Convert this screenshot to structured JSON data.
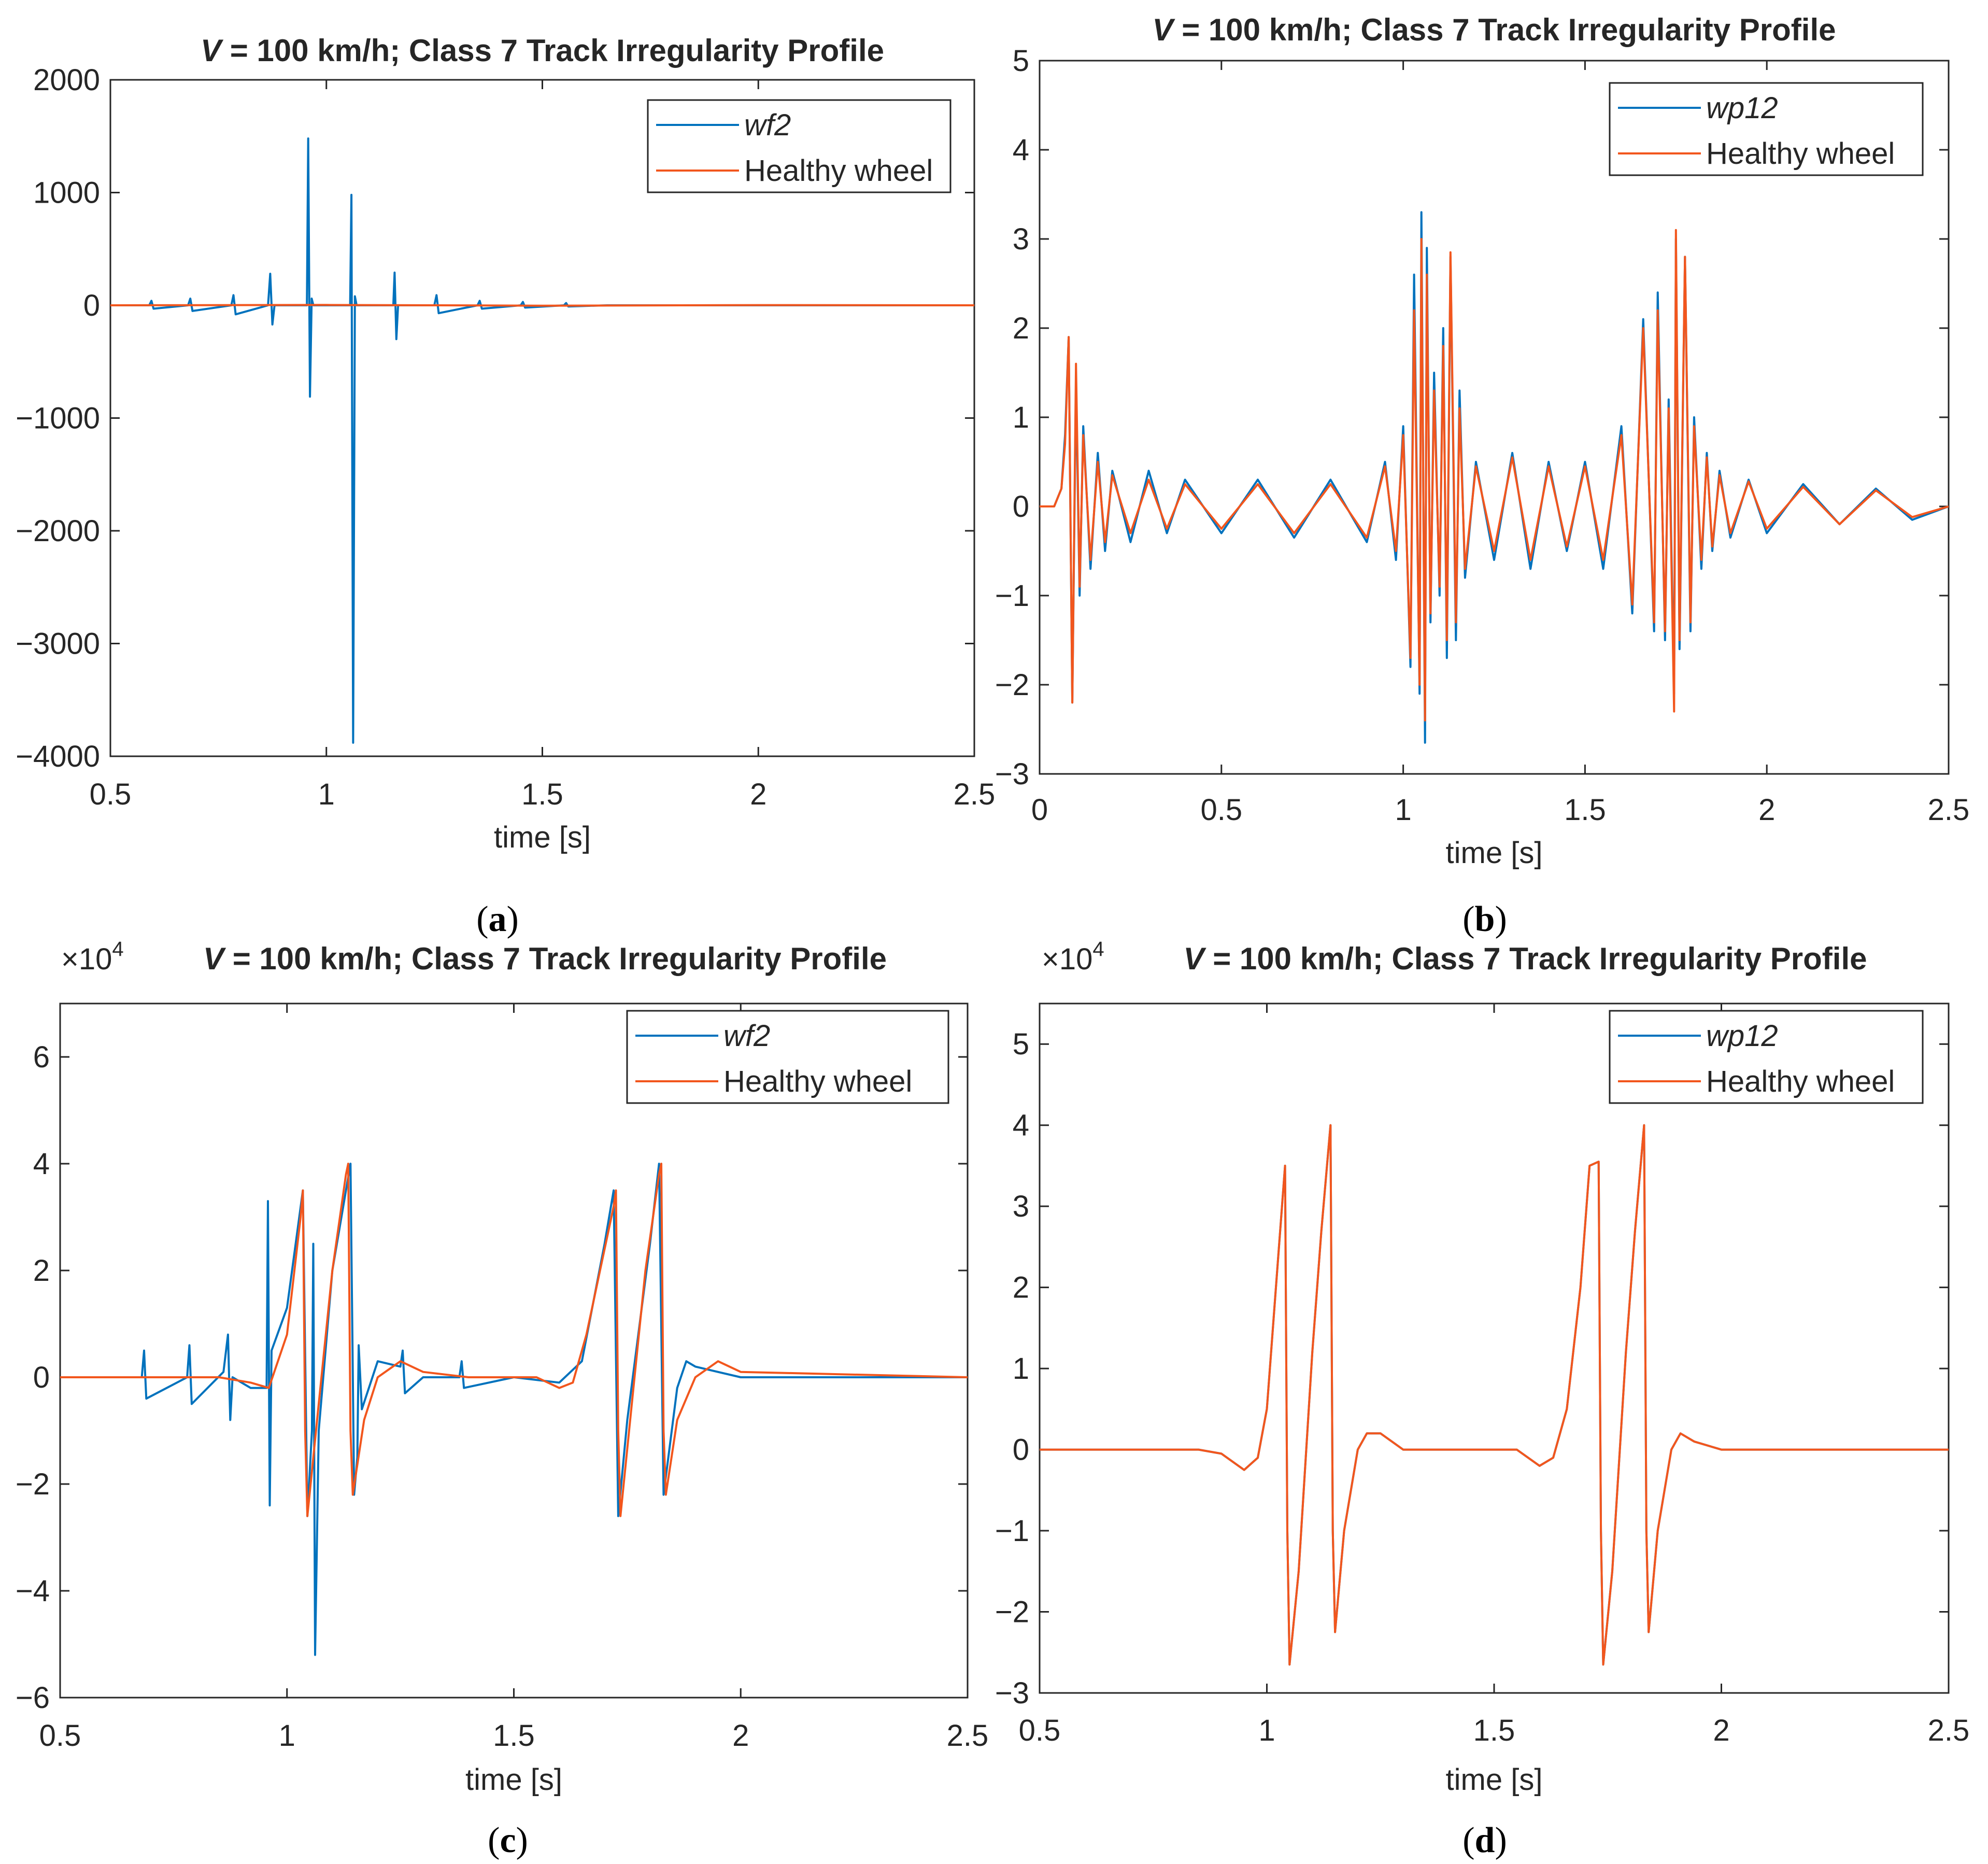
{
  "colors": {
    "faulty": "#0072BD",
    "healthy": "#F2561D",
    "axis": "#262626",
    "background": "#ffffff"
  },
  "chart_data": [
    {
      "id": "a",
      "type": "line",
      "title_speed": "V",
      "title_rest": " = 100 km/h; Class 7 Track Irregularity Profile",
      "xlabel": "time [s]",
      "ylabel": "",
      "caption": "(a)",
      "exponent": "",
      "xlim": [
        0.5,
        2.5
      ],
      "ylim": [
        -4000,
        2000
      ],
      "xticks": [
        0.5,
        1,
        1.5,
        2,
        2.5
      ],
      "xtick_labels": [
        "0.5",
        "1",
        "1.5",
        "2",
        "2.5"
      ],
      "yticks": [
        -4000,
        -3000,
        -2000,
        -1000,
        0,
        1000,
        2000
      ],
      "ytick_labels": [
        "−4000",
        "−3000",
        "−2000",
        "−1000",
        "0",
        "1000",
        "2000"
      ],
      "legend": [
        "wf2",
        "Healthy wheel"
      ],
      "legend_position": "top-right",
      "series": [
        {
          "name": "wf2",
          "x": [
            0.5,
            0.59,
            0.595,
            0.6,
            0.68,
            0.685,
            0.69,
            0.78,
            0.785,
            0.79,
            0.865,
            0.87,
            0.875,
            0.88,
            0.955,
            0.958,
            0.962,
            0.966,
            0.97,
            1.055,
            1.058,
            1.062,
            1.066,
            1.07,
            1.155,
            1.158,
            1.162,
            1.166,
            1.25,
            1.255,
            1.26,
            1.35,
            1.355,
            1.36,
            1.45,
            1.455,
            1.46,
            1.55,
            1.555,
            1.56,
            1.65,
            1.7,
            2.5
          ],
          "y": [
            0,
            0,
            40,
            -30,
            0,
            60,
            -50,
            0,
            90,
            -80,
            0,
            280,
            -170,
            0,
            0,
            1480,
            -810,
            60,
            0,
            0,
            980,
            -3880,
            80,
            0,
            0,
            290,
            -300,
            0,
            0,
            90,
            -70,
            0,
            40,
            -30,
            0,
            30,
            -20,
            0,
            20,
            -10,
            0,
            0,
            0
          ]
        },
        {
          "name": "Healthy wheel",
          "x": [
            0.5,
            1.0,
            1.5,
            2.0,
            2.5
          ],
          "y": [
            0,
            3,
            -3,
            2,
            0
          ]
        }
      ]
    },
    {
      "id": "b",
      "type": "line",
      "title_speed": "V",
      "title_rest": " = 100 km/h; Class 7 Track Irregularity Profile",
      "xlabel": "time [s]",
      "ylabel": "",
      "caption": "(b)",
      "exponent": "",
      "xlim": [
        0,
        2.5
      ],
      "ylim": [
        -3,
        5
      ],
      "xticks": [
        0,
        0.5,
        1,
        1.5,
        2,
        2.5
      ],
      "xtick_labels": [
        "0",
        "0.5",
        "1",
        "1.5",
        "2",
        "2.5"
      ],
      "yticks": [
        -3,
        -2,
        -1,
        0,
        1,
        2,
        3,
        4,
        5
      ],
      "ytick_labels": [
        "−3",
        "−2",
        "−1",
        "0",
        "1",
        "2",
        "3",
        "4",
        "5"
      ],
      "legend": [
        "wp12",
        "Healthy wheel"
      ],
      "legend_position": "top-right",
      "series": [
        {
          "name": "wp12",
          "x": [
            0,
            0.04,
            0.06,
            0.07,
            0.08,
            0.09,
            0.1,
            0.11,
            0.12,
            0.14,
            0.16,
            0.18,
            0.2,
            0.25,
            0.3,
            0.35,
            0.4,
            0.5,
            0.6,
            0.7,
            0.8,
            0.9,
            0.95,
            0.98,
            1.0,
            1.02,
            1.03,
            1.045,
            1.05,
            1.06,
            1.065,
            1.075,
            1.085,
            1.1,
            1.11,
            1.12,
            1.13,
            1.145,
            1.155,
            1.17,
            1.2,
            1.25,
            1.3,
            1.35,
            1.4,
            1.45,
            1.5,
            1.55,
            1.6,
            1.63,
            1.66,
            1.69,
            1.7,
            1.72,
            1.73,
            1.745,
            1.75,
            1.76,
            1.775,
            1.79,
            1.8,
            1.82,
            1.835,
            1.85,
            1.87,
            1.9,
            1.95,
            2.0,
            2.1,
            2.2,
            2.3,
            2.4,
            2.5
          ],
          "y": [
            0,
            0,
            0.2,
            0.8,
            1.9,
            -2.2,
            1.4,
            -1.0,
            0.9,
            -0.7,
            0.6,
            -0.5,
            0.4,
            -0.4,
            0.4,
            -0.3,
            0.3,
            -0.3,
            0.3,
            -0.35,
            0.3,
            -0.4,
            0.5,
            -0.6,
            0.9,
            -1.8,
            2.6,
            -2.1,
            3.3,
            -2.65,
            2.9,
            -1.3,
            1.5,
            -1.0,
            2.0,
            -1.7,
            2.8,
            -1.5,
            1.3,
            -0.8,
            0.5,
            -0.6,
            0.6,
            -0.7,
            0.5,
            -0.5,
            0.5,
            -0.7,
            0.9,
            -1.2,
            2.1,
            -1.4,
            2.4,
            -1.5,
            1.2,
            -2.1,
            3.0,
            -1.6,
            2.8,
            -1.4,
            1.0,
            -0.7,
            0.6,
            -0.5,
            0.4,
            -0.35,
            0.3,
            -0.3,
            0.25,
            -0.2,
            0.2,
            -0.15,
            0
          ]
        },
        {
          "name": "Healthy wheel",
          "x": [
            0,
            0.04,
            0.06,
            0.07,
            0.08,
            0.09,
            0.1,
            0.11,
            0.12,
            0.14,
            0.16,
            0.18,
            0.2,
            0.25,
            0.3,
            0.35,
            0.4,
            0.5,
            0.6,
            0.7,
            0.8,
            0.9,
            0.95,
            0.98,
            1.0,
            1.02,
            1.03,
            1.045,
            1.05,
            1.06,
            1.065,
            1.075,
            1.085,
            1.1,
            1.11,
            1.12,
            1.13,
            1.145,
            1.155,
            1.17,
            1.2,
            1.25,
            1.3,
            1.35,
            1.4,
            1.45,
            1.5,
            1.55,
            1.6,
            1.63,
            1.66,
            1.69,
            1.7,
            1.72,
            1.73,
            1.745,
            1.75,
            1.76,
            1.775,
            1.79,
            1.8,
            1.82,
            1.835,
            1.85,
            1.87,
            1.9,
            1.95,
            2.0,
            2.1,
            2.2,
            2.3,
            2.4,
            2.5
          ],
          "y": [
            0,
            0,
            0.2,
            0.7,
            1.9,
            -2.2,
            1.6,
            -0.9,
            0.8,
            -0.6,
            0.5,
            -0.4,
            0.35,
            -0.3,
            0.3,
            -0.25,
            0.25,
            -0.25,
            0.25,
            -0.3,
            0.25,
            -0.35,
            0.45,
            -0.5,
            0.8,
            -1.7,
            2.2,
            -2.0,
            3.0,
            -2.4,
            2.6,
            -1.2,
            1.3,
            -0.9,
            1.8,
            -1.5,
            2.85,
            -1.3,
            1.1,
            -0.7,
            0.45,
            -0.5,
            0.55,
            -0.6,
            0.45,
            -0.45,
            0.45,
            -0.6,
            0.8,
            -1.1,
            2.0,
            -1.3,
            2.2,
            -1.4,
            1.1,
            -2.3,
            3.1,
            -1.5,
            2.8,
            -1.3,
            0.9,
            -0.6,
            0.55,
            -0.45,
            0.35,
            -0.3,
            0.28,
            -0.25,
            0.22,
            -0.2,
            0.18,
            -0.12,
            0
          ]
        }
      ]
    },
    {
      "id": "c",
      "type": "line",
      "title_speed": "V",
      "title_rest": " = 100 km/h; Class 7 Track Irregularity Profile",
      "xlabel": "time [s]",
      "ylabel": "",
      "caption": "(c)",
      "exponent": "×10",
      "exponent_power": "4",
      "xlim": [
        0.5,
        2.5
      ],
      "ylim": [
        -6,
        7
      ],
      "xticks": [
        0.5,
        1,
        1.5,
        2,
        2.5
      ],
      "xtick_labels": [
        "0.5",
        "1",
        "1.5",
        "2",
        "2.5"
      ],
      "yticks": [
        -6,
        -4,
        -2,
        0,
        2,
        4,
        6
      ],
      "ytick_labels": [
        "−6",
        "−4",
        "−2",
        "0",
        "2",
        "4",
        "6"
      ],
      "legend": [
        "wf2",
        "Healthy wheel"
      ],
      "legend_position": "top-right",
      "series": [
        {
          "name": "wf2",
          "x": [
            0.5,
            0.6,
            0.68,
            0.685,
            0.69,
            0.78,
            0.785,
            0.79,
            0.86,
            0.87,
            0.875,
            0.88,
            0.92,
            0.955,
            0.958,
            0.962,
            0.966,
            1.0,
            1.035,
            1.045,
            1.055,
            1.058,
            1.062,
            1.07,
            1.1,
            1.14,
            1.148,
            1.155,
            1.158,
            1.165,
            1.2,
            1.25,
            1.255,
            1.26,
            1.3,
            1.38,
            1.385,
            1.39,
            1.5,
            1.6,
            1.65,
            1.7,
            1.72,
            1.73,
            1.75,
            1.8,
            1.82,
            1.83,
            1.86,
            1.88,
            1.9,
            2.0,
            2.1,
            2.5
          ],
          "y": [
            0,
            0,
            0,
            0.5,
            -0.4,
            0,
            0.6,
            -0.5,
            0.1,
            0.8,
            -0.8,
            0,
            -0.2,
            -0.2,
            3.3,
            -2.4,
            0.5,
            1.3,
            3.5,
            -2.6,
            -1.0,
            2.5,
            -5.2,
            -1.0,
            2.0,
            4.0,
            -2.2,
            -1.5,
            0.6,
            -0.6,
            0.3,
            0.2,
            0.5,
            -0.3,
            0,
            0,
            0.3,
            -0.2,
            0,
            -0.1,
            0.3,
            2.5,
            3.5,
            -2.6,
            -0.8,
            2.5,
            4.0,
            -2.2,
            -0.2,
            0.3,
            0.2,
            0,
            0,
            0
          ]
        },
        {
          "name": "Healthy wheel",
          "x": [
            0.5,
            0.85,
            0.92,
            0.96,
            1.0,
            1.03,
            1.035,
            1.04,
            1.045,
            1.07,
            1.1,
            1.13,
            1.135,
            1.14,
            1.145,
            1.17,
            1.2,
            1.25,
            1.3,
            1.4,
            1.55,
            1.6,
            1.63,
            1.66,
            1.69,
            1.72,
            1.725,
            1.73,
            1.735,
            1.76,
            1.79,
            1.82,
            1.825,
            1.83,
            1.835,
            1.86,
            1.9,
            1.95,
            2.0,
            2.5
          ],
          "y": [
            0,
            0,
            -0.1,
            -0.2,
            0.8,
            3.0,
            3.5,
            -1.0,
            -2.6,
            -0.5,
            2.0,
            3.8,
            4.0,
            -1.0,
            -2.2,
            -0.8,
            0,
            0.3,
            0.1,
            0,
            0,
            -0.2,
            -0.1,
            0.8,
            2.0,
            3.2,
            3.5,
            -1.0,
            -2.6,
            -0.5,
            2.0,
            3.8,
            4.0,
            -1.0,
            -2.2,
            -0.8,
            0,
            0.3,
            0.1,
            0
          ]
        }
      ]
    },
    {
      "id": "d",
      "type": "line",
      "title_speed": "V",
      "title_rest": " = 100 km/h; Class 7 Track Irregularity Profile",
      "xlabel": "time [s]",
      "ylabel": "",
      "caption": "(d)",
      "exponent": "×10",
      "exponent_power": "4",
      "xlim": [
        0.5,
        2.5
      ],
      "ylim": [
        -3,
        5.5
      ],
      "xticks": [
        0.5,
        1,
        1.5,
        2,
        2.5
      ],
      "xtick_labels": [
        "0.5",
        "1",
        "1.5",
        "2",
        "2.5"
      ],
      "yticks": [
        -3,
        -2,
        -1,
        0,
        1,
        2,
        3,
        4,
        5
      ],
      "ytick_labels": [
        "−3",
        "−2",
        "−1",
        "0",
        "1",
        "2",
        "3",
        "4",
        "5"
      ],
      "legend": [
        "wp12",
        "Healthy wheel"
      ],
      "legend_position": "top-right",
      "series": [
        {
          "name": "wp12",
          "x": [
            0.5,
            0.85,
            0.9,
            0.95,
            0.98,
            1.0,
            1.02,
            1.04,
            1.045,
            1.05,
            1.07,
            1.1,
            1.12,
            1.14,
            1.145,
            1.15,
            1.17,
            1.2,
            1.22,
            1.25,
            1.3,
            1.4,
            1.55,
            1.6,
            1.63,
            1.66,
            1.69,
            1.71,
            1.73,
            1.735,
            1.74,
            1.76,
            1.79,
            1.81,
            1.83,
            1.835,
            1.84,
            1.86,
            1.89,
            1.91,
            1.94,
            2.0,
            2.5
          ],
          "y": [
            0,
            0,
            -0.05,
            -0.25,
            -0.1,
            0.5,
            2.0,
            3.5,
            -1.0,
            -2.65,
            -1.5,
            1.2,
            2.7,
            4.0,
            -1.0,
            -2.25,
            -1.0,
            0,
            0.2,
            0.2,
            0,
            0,
            0,
            -0.2,
            -0.1,
            0.5,
            2.0,
            3.5,
            3.55,
            -1.0,
            -2.65,
            -1.5,
            1.2,
            2.7,
            4.0,
            -1.0,
            -2.25,
            -1.0,
            0,
            0.2,
            0.1,
            0,
            0
          ]
        },
        {
          "name": "Healthy wheel",
          "x": [
            0.5,
            0.85,
            0.9,
            0.95,
            0.98,
            1.0,
            1.02,
            1.04,
            1.045,
            1.05,
            1.07,
            1.1,
            1.12,
            1.14,
            1.145,
            1.15,
            1.17,
            1.2,
            1.22,
            1.25,
            1.3,
            1.4,
            1.55,
            1.6,
            1.63,
            1.66,
            1.69,
            1.71,
            1.73,
            1.735,
            1.74,
            1.76,
            1.79,
            1.81,
            1.83,
            1.835,
            1.84,
            1.86,
            1.89,
            1.91,
            1.94,
            2.0,
            2.5
          ],
          "y": [
            0,
            0,
            -0.05,
            -0.25,
            -0.1,
            0.5,
            2.0,
            3.5,
            -1.0,
            -2.65,
            -1.5,
            1.2,
            2.7,
            4.0,
            -1.0,
            -2.25,
            -1.0,
            0,
            0.2,
            0.2,
            0,
            0,
            0,
            -0.2,
            -0.1,
            0.5,
            2.0,
            3.5,
            3.55,
            -1.0,
            -2.65,
            -1.5,
            1.2,
            2.7,
            4.0,
            -1.0,
            -2.25,
            -1.0,
            0,
            0.2,
            0.1,
            0,
            0
          ]
        }
      ]
    }
  ]
}
